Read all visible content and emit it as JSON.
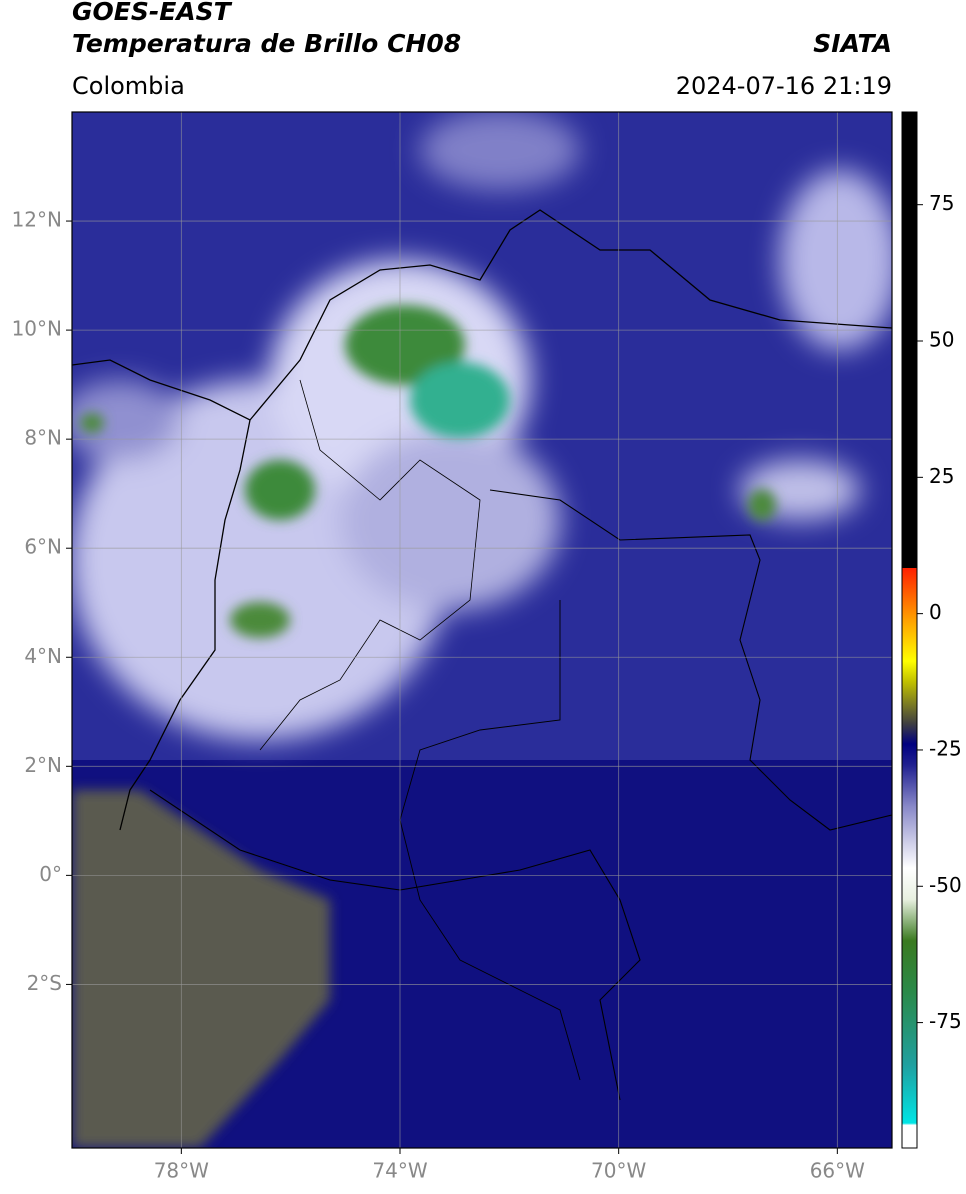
{
  "header": {
    "title": "GOES-EAST",
    "subtitle": "Temperatura de Brillo CH08",
    "source": "SIATA",
    "region": "Colombia",
    "timestamp": "2024-07-16 21:19"
  },
  "map": {
    "xlim": [
      -80,
      -65
    ],
    "ylim": [
      -5,
      14
    ],
    "xticks": [
      {
        "value": -78,
        "label": "78°W"
      },
      {
        "value": -74,
        "label": "74°W"
      },
      {
        "value": -70,
        "label": "70°W"
      },
      {
        "value": -66,
        "label": "66°W"
      }
    ],
    "yticks": [
      {
        "value": 12,
        "label": "12°N"
      },
      {
        "value": 10,
        "label": "10°N"
      },
      {
        "value": 8,
        "label": "8°N"
      },
      {
        "value": 6,
        "label": "6°N"
      },
      {
        "value": 4,
        "label": "4°N"
      },
      {
        "value": 2,
        "label": "2°N"
      },
      {
        "value": 0,
        "label": "0°"
      },
      {
        "value": -2,
        "label": "2°S"
      }
    ],
    "grid": true
  },
  "colorbar": {
    "lim": [
      -98,
      92
    ],
    "ticks": [
      75,
      50,
      25,
      0,
      -25,
      -50,
      -75
    ]
  }
}
